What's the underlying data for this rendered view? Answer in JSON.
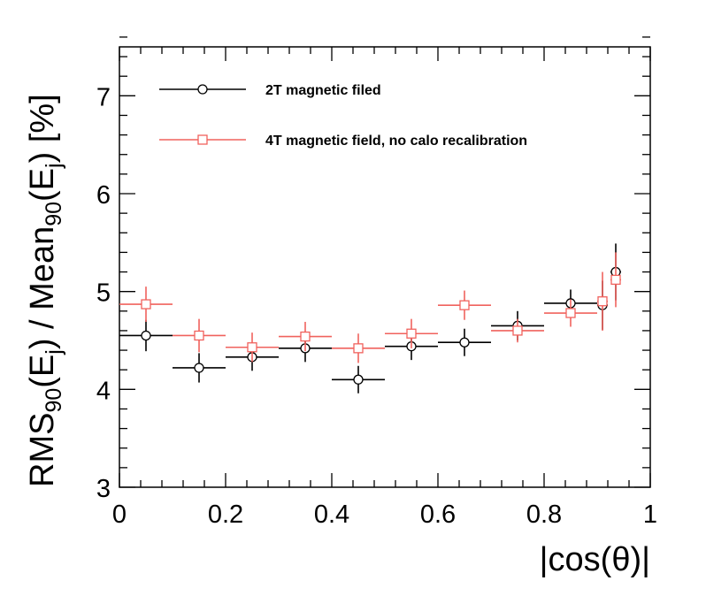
{
  "chart_data": {
    "type": "scatter",
    "title": "",
    "xlabel": "|cos(θ)|",
    "ylabel": {
      "parts": [
        {
          "t": "RMS",
          "s": "normal"
        },
        {
          "t": "90",
          "s": "sub"
        },
        {
          "t": "(E",
          "s": "normal"
        },
        {
          "t": "j",
          "s": "sub"
        },
        {
          "t": ") / Mean",
          "s": "normal"
        },
        {
          "t": "90",
          "s": "sub"
        },
        {
          "t": "(E",
          "s": "normal"
        },
        {
          "t": "j",
          "s": "sub"
        },
        {
          "t": ") [%]",
          "s": "normal"
        }
      ]
    },
    "xlim": [
      0,
      1
    ],
    "ylim": [
      3,
      7.5
    ],
    "x_ticks": [
      0,
      0.2,
      0.4,
      0.6,
      0.8,
      1
    ],
    "x_tick_labels": [
      "0",
      "0.2",
      "0.4",
      "0.6",
      "0.8",
      "1"
    ],
    "y_ticks": [
      3,
      4,
      5,
      6,
      7
    ],
    "y_tick_labels": [
      "3",
      "4",
      "5",
      "6",
      "7"
    ],
    "grid": false,
    "legend_position": "top-left",
    "series": [
      {
        "name": "2T magnetic filed",
        "color": "#000000",
        "marker": "circle",
        "points": [
          {
            "x": 0.05,
            "y": 4.55,
            "xerr": 0.05,
            "yerr": 0.16
          },
          {
            "x": 0.15,
            "y": 4.22,
            "xerr": 0.05,
            "yerr": 0.15
          },
          {
            "x": 0.25,
            "y": 4.33,
            "xerr": 0.05,
            "yerr": 0.14
          },
          {
            "x": 0.35,
            "y": 4.42,
            "xerr": 0.05,
            "yerr": 0.14
          },
          {
            "x": 0.45,
            "y": 4.1,
            "xerr": 0.05,
            "yerr": 0.14
          },
          {
            "x": 0.55,
            "y": 4.44,
            "xerr": 0.05,
            "yerr": 0.14
          },
          {
            "x": 0.65,
            "y": 4.48,
            "xerr": 0.05,
            "yerr": 0.14
          },
          {
            "x": 0.75,
            "y": 4.65,
            "xerr": 0.05,
            "yerr": 0.15
          },
          {
            "x": 0.85,
            "y": 4.88,
            "xerr": 0.05,
            "yerr": 0.14
          },
          {
            "x": 0.91,
            "y": 4.86,
            "xerr": 0.01,
            "yerr": 0.25
          },
          {
            "x": 0.935,
            "y": 5.2,
            "xerr": 0.01,
            "yerr": 0.29
          }
        ]
      },
      {
        "name": "4T magnetic field, no calo recalibration",
        "color": "#f0625d",
        "marker": "square",
        "points": [
          {
            "x": 0.05,
            "y": 4.87,
            "xerr": 0.05,
            "yerr": 0.18
          },
          {
            "x": 0.15,
            "y": 4.55,
            "xerr": 0.05,
            "yerr": 0.17
          },
          {
            "x": 0.25,
            "y": 4.43,
            "xerr": 0.05,
            "yerr": 0.15
          },
          {
            "x": 0.35,
            "y": 4.54,
            "xerr": 0.05,
            "yerr": 0.15
          },
          {
            "x": 0.45,
            "y": 4.42,
            "xerr": 0.05,
            "yerr": 0.15
          },
          {
            "x": 0.55,
            "y": 4.57,
            "xerr": 0.05,
            "yerr": 0.15
          },
          {
            "x": 0.65,
            "y": 4.86,
            "xerr": 0.05,
            "yerr": 0.15
          },
          {
            "x": 0.75,
            "y": 4.6,
            "xerr": 0.05,
            "yerr": 0.12
          },
          {
            "x": 0.85,
            "y": 4.78,
            "xerr": 0.05,
            "yerr": 0.14
          },
          {
            "x": 0.91,
            "y": 4.9,
            "xerr": 0.01,
            "yerr": 0.3
          },
          {
            "x": 0.935,
            "y": 5.12,
            "xerr": 0.01,
            "yerr": 0.28
          }
        ]
      }
    ]
  }
}
